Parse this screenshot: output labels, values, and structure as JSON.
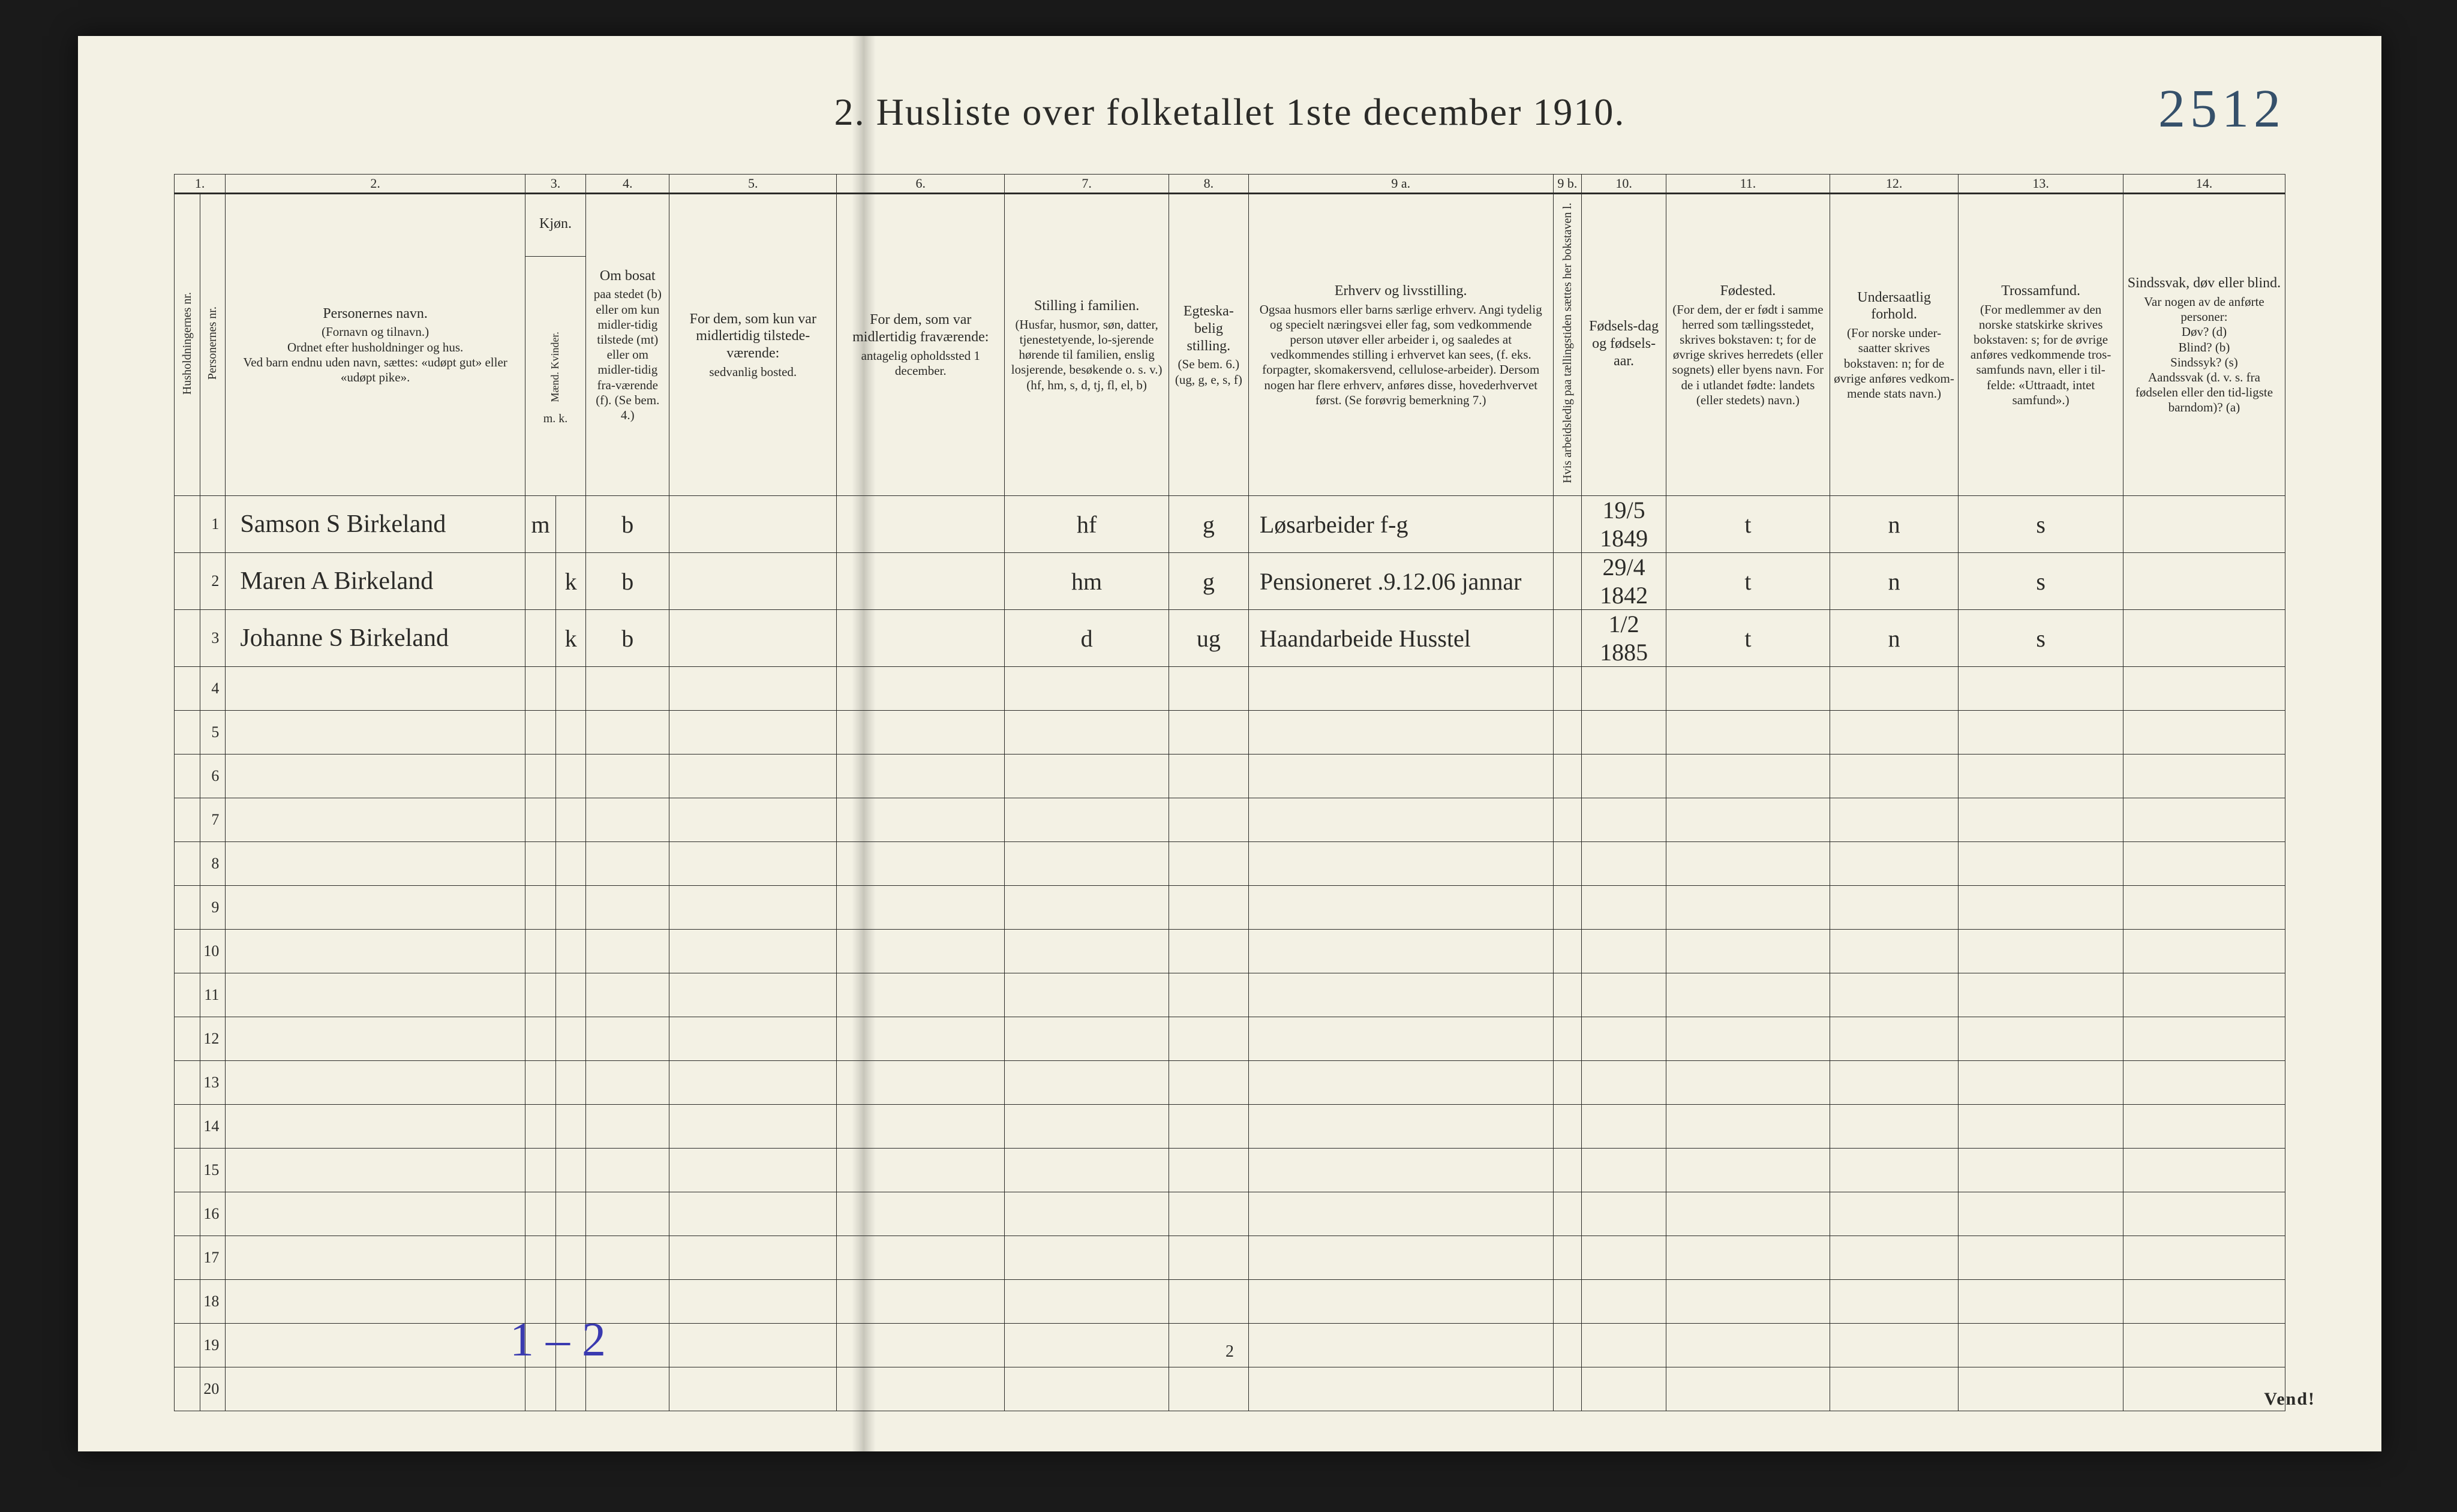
{
  "page": {
    "title": "2.  Husliste over folketallet 1ste december 1910.",
    "foot_page_number": "2",
    "vend": "Vend!",
    "annotation_top_right": "2512",
    "annotation_bottom_left": "1 – 2",
    "background_color": "#f3f1e4",
    "ink_color": "#2b2b28",
    "pencil_blue": "#35506a",
    "ink_blue": "#3a3ab0"
  },
  "columns": {
    "nums": [
      "1.",
      "2.",
      "3.",
      "4.",
      "5.",
      "6.",
      "7.",
      "8.",
      "9 a.",
      "9 b.",
      "10.",
      "11.",
      "12.",
      "13.",
      "14."
    ],
    "c1a": "Husholdningernes nr.",
    "c1b": "Personernes nr.",
    "c2_title": "Personernes navn.",
    "c2_sub": "(Fornavn og tilnavn.)\nOrdnet efter husholdninger og hus.\nVed barn endnu uden navn, sættes: «udøpt gut» eller «udøpt pike».",
    "c3_title": "Kjøn.",
    "c3_sub": "Mænd.   Kvinder.",
    "c3_mk": "m.  k.",
    "c4_title": "Om bosat",
    "c4_sub": "paa stedet (b) eller om kun midler-tidig tilstede (mt) eller om midler-tidig fra-værende (f). (Se bem. 4.)",
    "c5_title": "For dem, som kun var midlertidig tilstede-værende:",
    "c5_sub": "sedvanlig bosted.",
    "c6_title": "For dem, som var midlertidig fraværende:",
    "c6_sub": "antagelig opholdssted 1 december.",
    "c7_title": "Stilling i familien.",
    "c7_sub": "(Husfar, husmor, søn, datter, tjenestetyende, lo-sjerende hørende til familien, enslig losjerende, besøkende o. s. v.)\n(hf, hm, s, d, tj, fl, el, b)",
    "c8_title": "Egteska-belig stilling.",
    "c8_sub": "(Se bem. 6.) (ug, g, e, s, f)",
    "c9a_title": "Erhverv og livsstilling.",
    "c9a_sub": "Ogsaa husmors eller barns særlige erhverv. Angi tydelig og specielt næringsvei eller fag, som vedkommende person utøver eller arbeider i, og saaledes at vedkommendes stilling i erhvervet kan sees, (f. eks. forpagter, skomakersvend, cellulose-arbeider). Dersom nogen har flere erhverv, anføres disse, hovederhvervet først. (Se forøvrig bemerkning 7.)",
    "c9b": "Hvis arbeidsledig paa tællingstiden sættes her bokstaven l.",
    "c10_title": "Fødsels-dag og fødsels-aar.",
    "c11_title": "Fødested.",
    "c11_sub": "(For dem, der er født i samme herred som tællingsstedet, skrives bokstaven: t; for de øvrige skrives herredets (eller sognets) eller byens navn. For de i utlandet fødte: landets (eller stedets) navn.)",
    "c12_title": "Undersaatlig forhold.",
    "c12_sub": "(For norske under-saatter skrives bokstaven: n; for de øvrige anføres vedkom-mende stats navn.)",
    "c13_title": "Trossamfund.",
    "c13_sub": "(For medlemmer av den norske statskirke skrives bokstaven: s; for de øvrige anføres vedkommende tros-samfunds navn, eller i til-felde: «Uttraadt, intet samfund».)",
    "c14_title": "Sindssvak, døv eller blind.",
    "c14_sub": "Var nogen av de anførte personer:\nDøv?        (d)\nBlind?      (b)\nSindssyk?  (s)\nAandssvak (d. v. s. fra fødselen eller den tid-ligste barndom)?  (a)"
  },
  "rows": [
    {
      "hh": "",
      "pnr": "1",
      "name": "Samson S Birkeland",
      "sex_m": "m",
      "sex_k": "",
      "bosat": "b",
      "mt_sted": "",
      "fr_sted": "",
      "fam": "hf",
      "egt": "g",
      "erhverv": "Løsarbeider      f-g",
      "ledig": "",
      "fdato": "19/5 1849",
      "fsted": "t",
      "und": "n",
      "tros": "s",
      "c14": ""
    },
    {
      "hh": "",
      "pnr": "2",
      "name": "Maren A Birkeland",
      "sex_m": "",
      "sex_k": "k",
      "bosat": "b",
      "mt_sted": "",
      "fr_sted": "",
      "fam": "hm",
      "egt": "g",
      "erhverv": "Pensioneret  .9.12.06  jannar",
      "ledig": "",
      "fdato": "29/4 1842",
      "fsted": "t",
      "und": "n",
      "tros": "s",
      "c14": ""
    },
    {
      "hh": "",
      "pnr": "3",
      "name": "Johanne S Birkeland",
      "sex_m": "",
      "sex_k": "k",
      "bosat": "b",
      "mt_sted": "",
      "fr_sted": "",
      "fam": "d",
      "egt": "ug",
      "erhverv": "Haandarbeide  Husstel",
      "ledig": "",
      "fdato": "1/2 1885",
      "fsted": "t",
      "und": "n",
      "tros": "s",
      "c14": ""
    }
  ],
  "empty_row_numbers": [
    "4",
    "5",
    "6",
    "7",
    "8",
    "9",
    "10",
    "11",
    "12",
    "13",
    "14",
    "15",
    "16",
    "17",
    "18",
    "19",
    "20"
  ]
}
